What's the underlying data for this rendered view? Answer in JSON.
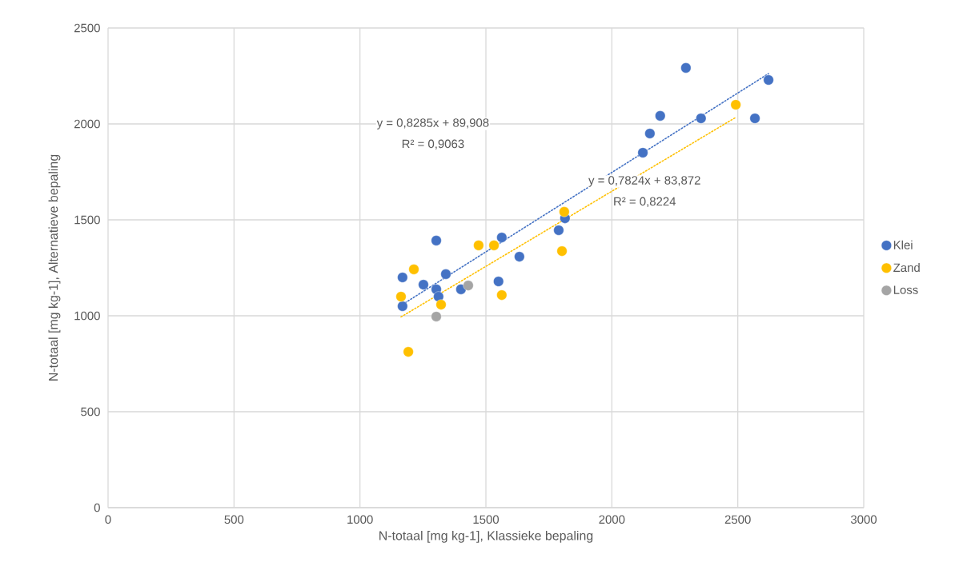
{
  "chart_data": {
    "type": "scatter",
    "xlabel": "N-totaal [mg kg-1], Klassieke bepaling",
    "ylabel": "N-totaal [mg kg-1], Alternatieve bepaling",
    "xlim": [
      0,
      3000
    ],
    "xticks": [
      0,
      500,
      1000,
      1500,
      2000,
      2500,
      3000
    ],
    "ylim": [
      0,
      2500
    ],
    "yticks": [
      0,
      500,
      1000,
      1500,
      2000,
      2500
    ],
    "grid": true,
    "legend": "right",
    "series": [
      {
        "name": "Klei",
        "marker": "circle",
        "color": "#4472c4",
        "x": [
          1169,
          1169,
          1252,
          1303,
          1303,
          1312,
          1341,
          1401,
          1550,
          1563,
          1633,
          1789,
          1814,
          2123,
          2151,
          2192,
          2294,
          2354,
          2568,
          2622
        ],
        "values": [
          1050,
          1200,
          1162,
          1392,
          1138,
          1100,
          1217,
          1138,
          1179,
          1408,
          1308,
          1446,
          1508,
          1850,
          1950,
          2042,
          2292,
          2029,
          2029,
          2229
        ]
      },
      {
        "name": "Zand",
        "marker": "circle",
        "color": "#ffc000",
        "x": [
          1163,
          1192,
          1214,
          1322,
          1471,
          1532,
          1563,
          1802,
          1811,
          2492
        ],
        "values": [
          1100,
          812,
          1242,
          1058,
          1367,
          1367,
          1108,
          1337,
          1542,
          2100
        ]
      },
      {
        "name": "Loss",
        "marker": "circle",
        "color": "#a5a5a5",
        "x": [
          1303,
          1430
        ],
        "values": [
          996,
          1158
        ]
      },
      {
        "type": "line",
        "line_style": "dotted",
        "marker": "none",
        "color": "#4472c4",
        "x": [
          1169,
          2622
        ],
        "values": [
          1059,
          2262
        ]
      },
      {
        "type": "line",
        "line_style": "dotted",
        "marker": "none",
        "color": "#ffc000",
        "x": [
          1163,
          2492
        ],
        "values": [
          994,
          2034
        ]
      }
    ],
    "annotations": [
      "y = 0,8285x + 89,908",
      "R² = 0,9063",
      "y = 0,7824x + 83,872",
      "R² = 0,8224"
    ]
  }
}
